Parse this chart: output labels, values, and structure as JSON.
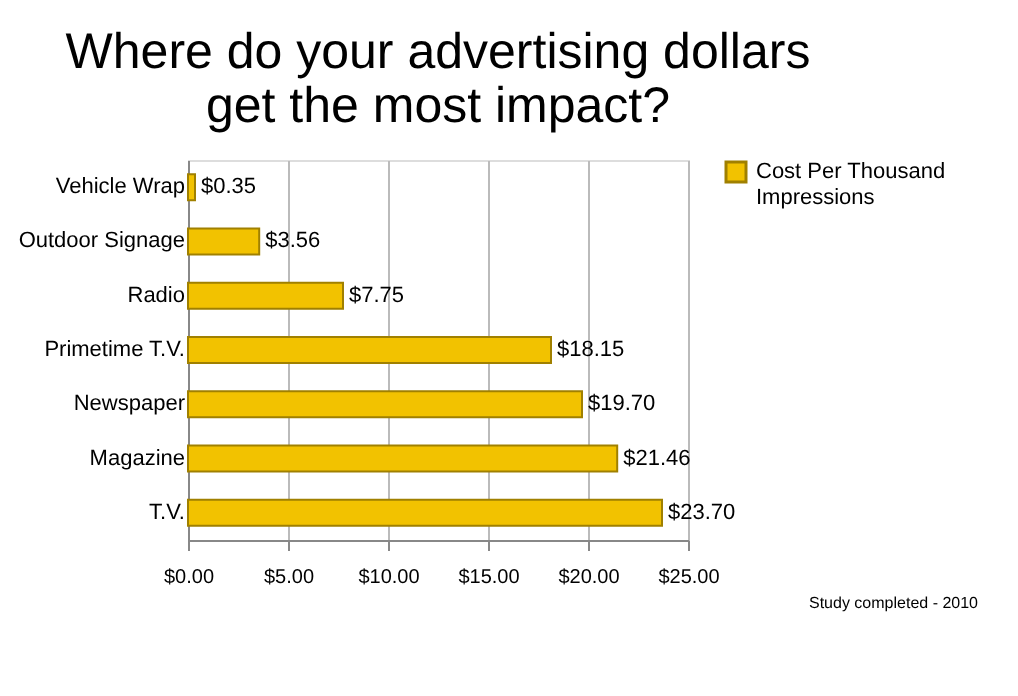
{
  "chart_data": {
    "type": "bar",
    "orientation": "horizontal",
    "title": "Where do your advertising dollars get the most impact?",
    "categories": [
      "Vehicle Wrap",
      "Outdoor Signage",
      "Radio",
      "Primetime T.V.",
      "Newspaper",
      "Magazine",
      "T.V."
    ],
    "series": [
      {
        "name": "Cost Per Thousand Impressions",
        "color": "#f2c200",
        "values": [
          0.35,
          3.56,
          7.75,
          18.15,
          19.7,
          21.46,
          23.7
        ],
        "value_labels": [
          "$0.35",
          "$3.56",
          "$7.75",
          "$18.15",
          "$19.70",
          "$21.46",
          "$23.70"
        ]
      }
    ],
    "xlim": [
      0,
      25
    ],
    "xticks": [
      {
        "value": 0,
        "label": "$0.00"
      },
      {
        "value": 5,
        "label": "$5.00"
      },
      {
        "value": 10,
        "label": "$10.00"
      },
      {
        "value": 15,
        "label": "$15.00"
      },
      {
        "value": 20,
        "label": "$20.00"
      },
      {
        "value": 25,
        "label": "$25.00"
      }
    ],
    "grid": "x",
    "legend": "right",
    "annotations": [
      "Study completed - 2010"
    ]
  }
}
